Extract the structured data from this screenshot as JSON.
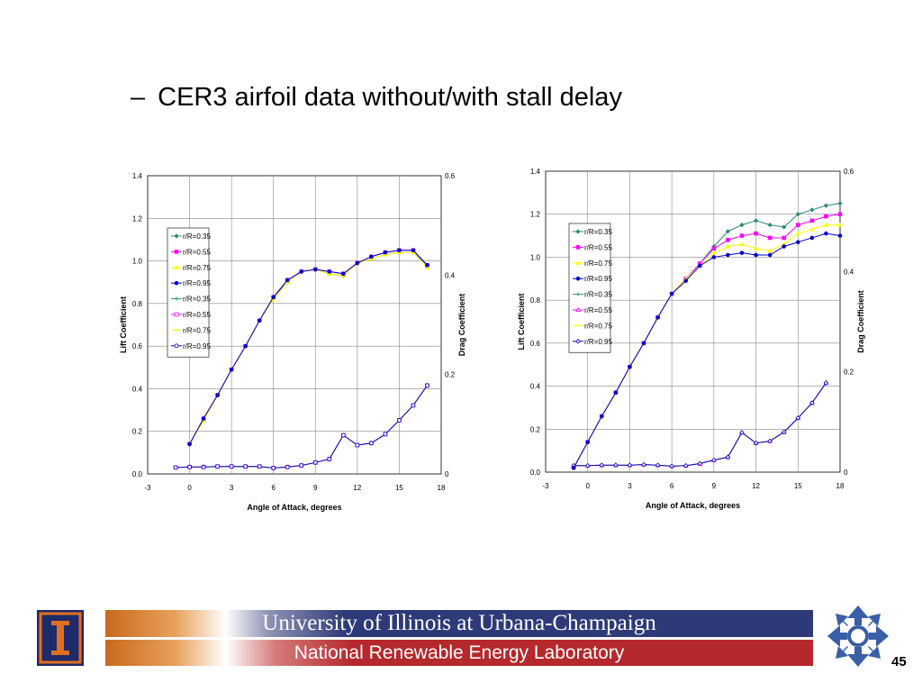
{
  "slide": {
    "title_dash": "–",
    "title": "CER3 airfoil data without/with stall delay",
    "page_number": "45"
  },
  "footer": {
    "line1": "University of Illinois at Urbana-Champaign",
    "line2": "National Renewable Energy Laboratory"
  },
  "colors": {
    "r035": "#2e8b74",
    "r055": "#ff00ff",
    "r075": "#ffff00",
    "r095": "#0000c8",
    "plot_bg": "#ffffff",
    "grid": "#888888",
    "illinois_blue": "#1f2a6b",
    "illinois_orange": "#e07020",
    "nrel_blue": "#3a5fa8"
  },
  "chart_data": [
    {
      "type": "line",
      "xlabel": "Angle of Attack, degrees",
      "ylabel": "Lift Coefficient",
      "y2label": "Drag Coefficient",
      "xlim": [
        -3,
        18
      ],
      "ylim": [
        0,
        1.4
      ],
      "y2lim": [
        0,
        0.6
      ],
      "xticks": [
        "-3",
        "0",
        "3",
        "6",
        "9",
        "12",
        "15",
        "18"
      ],
      "yticks": [
        "0.0",
        "0.2",
        "0.4",
        "0.6",
        "0.8",
        "1.0",
        "1.2",
        "1.4"
      ],
      "y2ticks": [
        "0",
        "0.2",
        "0.4",
        "0.6"
      ],
      "grid": true,
      "legend_position": "upper-left",
      "lift_series": [
        {
          "name": "r/R=0.35",
          "color": "#2e8b74",
          "marker": "diamond",
          "x": [
            0,
            1,
            2,
            3,
            4,
            5,
            6,
            7,
            8,
            9,
            10,
            11,
            12,
            13,
            14,
            15,
            16,
            17
          ],
          "y": [
            0.14,
            0.26,
            0.37,
            0.49,
            0.6,
            0.72,
            0.83,
            0.9,
            0.95,
            0.96,
            0.94,
            0.93,
            0.99,
            1.01,
            1.03,
            1.04,
            1.04,
            0.98
          ]
        },
        {
          "name": "r/R=0.55",
          "color": "#ff00ff",
          "marker": "square",
          "x": [
            0,
            1,
            2,
            3,
            4,
            5,
            6,
            7,
            8,
            9,
            10,
            11,
            12,
            13,
            14,
            15,
            16,
            17
          ],
          "y": [
            0.14,
            0.26,
            0.37,
            0.49,
            0.6,
            0.72,
            0.83,
            0.91,
            0.95,
            0.96,
            0.95,
            0.94,
            0.99,
            1.02,
            1.04,
            1.05,
            1.05,
            0.98
          ]
        },
        {
          "name": "r/R=0.75",
          "color": "#ffff00",
          "marker": "triangle",
          "x": [
            0,
            1,
            2,
            3,
            4,
            5,
            6,
            7,
            8,
            9,
            10,
            11,
            12,
            13,
            14,
            15,
            16,
            17
          ],
          "y": [
            0.14,
            0.25,
            0.37,
            0.49,
            0.6,
            0.72,
            0.82,
            0.9,
            0.95,
            0.96,
            0.94,
            0.93,
            0.99,
            1.01,
            1.03,
            1.04,
            1.04,
            0.97
          ]
        },
        {
          "name": "r/R=0.95",
          "color": "#0000c8",
          "marker": "circle",
          "x": [
            0,
            1,
            2,
            3,
            4,
            5,
            6,
            7,
            8,
            9,
            10,
            11,
            12,
            13,
            14,
            15,
            16,
            17
          ],
          "y": [
            0.14,
            0.26,
            0.37,
            0.49,
            0.6,
            0.72,
            0.83,
            0.91,
            0.95,
            0.96,
            0.95,
            0.94,
            0.99,
            1.02,
            1.04,
            1.05,
            1.05,
            0.98
          ]
        }
      ],
      "drag_series": [
        {
          "name": "r/R=0.35",
          "color": "#2e8b74",
          "marker": "plus",
          "x": [
            -1,
            0,
            1,
            2,
            3,
            4,
            5,
            6,
            7,
            8,
            9,
            10,
            11,
            12,
            13,
            14,
            15,
            16,
            17
          ],
          "y": [
            0.013,
            0.014,
            0.014,
            0.015,
            0.015,
            0.015,
            0.015,
            0.012,
            0.014,
            0.017,
            0.023,
            0.03,
            0.078,
            0.058,
            0.062,
            0.08,
            0.108,
            0.138,
            0.178
          ]
        },
        {
          "name": "r/R=0.55",
          "color": "#ff00ff",
          "marker": "open-square",
          "x": [
            -1,
            0,
            1,
            2,
            3,
            4,
            5,
            6,
            7,
            8,
            9,
            10,
            11,
            12,
            13,
            14,
            15,
            16,
            17
          ],
          "y": [
            0.013,
            0.014,
            0.014,
            0.015,
            0.015,
            0.015,
            0.015,
            0.012,
            0.014,
            0.017,
            0.023,
            0.03,
            0.078,
            0.058,
            0.062,
            0.08,
            0.108,
            0.138,
            0.178
          ]
        },
        {
          "name": "r/R=0.75",
          "color": "#ffff00",
          "marker": "dash",
          "x": [
            -1,
            0,
            1,
            2,
            3,
            4,
            5,
            6,
            7,
            8,
            9,
            10,
            11,
            12,
            13,
            14,
            15,
            16,
            17
          ],
          "y": [
            0.013,
            0.014,
            0.014,
            0.015,
            0.015,
            0.015,
            0.015,
            0.012,
            0.014,
            0.017,
            0.023,
            0.03,
            0.078,
            0.058,
            0.062,
            0.08,
            0.108,
            0.138,
            0.178
          ]
        },
        {
          "name": "r/R=0.95",
          "color": "#0000c8",
          "marker": "open-circle",
          "x": [
            -1,
            0,
            1,
            2,
            3,
            4,
            5,
            6,
            7,
            8,
            9,
            10,
            11,
            12,
            13,
            14,
            15,
            16,
            17
          ],
          "y": [
            0.013,
            0.014,
            0.014,
            0.015,
            0.015,
            0.015,
            0.015,
            0.012,
            0.014,
            0.017,
            0.023,
            0.03,
            0.078,
            0.058,
            0.062,
            0.08,
            0.108,
            0.138,
            0.178
          ]
        }
      ]
    },
    {
      "type": "line",
      "xlabel": "Angle of Attack, degrees",
      "ylabel": "Lift Coefficient",
      "y2label": "Drag Coefficient",
      "xlim": [
        -3,
        18
      ],
      "ylim": [
        0,
        1.4
      ],
      "y2lim": [
        0,
        0.6
      ],
      "xticks": [
        "-3",
        "0",
        "3",
        "6",
        "9",
        "12",
        "15",
        "18"
      ],
      "yticks": [
        "0.0",
        "0.2",
        "0.4",
        "0.6",
        "0.8",
        "1.0",
        "1.2",
        "1.4"
      ],
      "y2ticks": [
        "0",
        "0.2",
        "0.4",
        "0.6"
      ],
      "grid": true,
      "legend_position": "upper-left",
      "lift_series": [
        {
          "name": "r/R=0.35",
          "color": "#2e8b74",
          "marker": "diamond",
          "x": [
            -1,
            0,
            1,
            2,
            3,
            4,
            5,
            6,
            7,
            8,
            9,
            10,
            11,
            12,
            13,
            14,
            15,
            16,
            17,
            18
          ],
          "y": [
            0.02,
            0.14,
            0.26,
            0.37,
            0.49,
            0.6,
            0.72,
            0.83,
            0.9,
            0.97,
            1.05,
            1.12,
            1.15,
            1.17,
            1.15,
            1.14,
            1.2,
            1.22,
            1.24,
            1.25
          ]
        },
        {
          "name": "r/R=0.55",
          "color": "#ff00ff",
          "marker": "square",
          "x": [
            -1,
            0,
            1,
            2,
            3,
            4,
            5,
            6,
            7,
            8,
            9,
            10,
            11,
            12,
            13,
            14,
            15,
            16,
            17,
            18
          ],
          "y": [
            0.02,
            0.14,
            0.26,
            0.37,
            0.49,
            0.6,
            0.72,
            0.83,
            0.9,
            0.97,
            1.04,
            1.08,
            1.1,
            1.11,
            1.09,
            1.09,
            1.15,
            1.17,
            1.19,
            1.2
          ]
        },
        {
          "name": "r/R=0.75",
          "color": "#ffff00",
          "marker": "triangle",
          "x": [
            -1,
            0,
            1,
            2,
            3,
            4,
            5,
            6,
            7,
            8,
            9,
            10,
            11,
            12,
            13,
            14,
            15,
            16,
            17,
            18
          ],
          "y": [
            0.02,
            0.14,
            0.26,
            0.37,
            0.49,
            0.6,
            0.72,
            0.83,
            0.9,
            0.96,
            1.02,
            1.05,
            1.06,
            1.04,
            1.03,
            1.06,
            1.11,
            1.13,
            1.15,
            1.15
          ]
        },
        {
          "name": "r/R=0.95",
          "color": "#0000c8",
          "marker": "circle",
          "x": [
            -1,
            0,
            1,
            2,
            3,
            4,
            5,
            6,
            7,
            8,
            9,
            10,
            11,
            12,
            13,
            14,
            15,
            16,
            17,
            18
          ],
          "y": [
            0.02,
            0.14,
            0.26,
            0.37,
            0.49,
            0.6,
            0.72,
            0.83,
            0.89,
            0.96,
            1.0,
            1.01,
            1.02,
            1.01,
            1.01,
            1.05,
            1.07,
            1.09,
            1.11,
            1.1
          ]
        }
      ],
      "drag_series": [
        {
          "name": "r/R=0.35",
          "color": "#2e8b74",
          "marker": "plus",
          "x": [
            -1,
            0,
            1,
            2,
            3,
            4,
            5,
            6,
            7,
            8,
            9,
            10,
            11,
            12,
            13,
            14,
            15,
            16,
            17
          ],
          "y": [
            0.013,
            0.013,
            0.014,
            0.014,
            0.014,
            0.015,
            0.014,
            0.012,
            0.013,
            0.017,
            0.024,
            0.03,
            0.079,
            0.058,
            0.062,
            0.08,
            0.108,
            0.138,
            0.178
          ]
        },
        {
          "name": "r/R=0.55",
          "color": "#ff00ff",
          "marker": "open-triangle",
          "x": [
            -1,
            0,
            1,
            2,
            3,
            4,
            5,
            6,
            7,
            8,
            9,
            10,
            11,
            12,
            13,
            14,
            15,
            16,
            17
          ],
          "y": [
            0.013,
            0.013,
            0.014,
            0.014,
            0.014,
            0.015,
            0.014,
            0.012,
            0.013,
            0.017,
            0.024,
            0.03,
            0.079,
            0.058,
            0.062,
            0.08,
            0.108,
            0.138,
            0.178
          ]
        },
        {
          "name": "r/R=0.75",
          "color": "#ffff00",
          "marker": "dash",
          "x": [
            -1,
            0,
            1,
            2,
            3,
            4,
            5,
            6,
            7,
            8,
            9,
            10,
            11,
            12,
            13,
            14,
            15,
            16,
            17
          ],
          "y": [
            0.013,
            0.013,
            0.014,
            0.014,
            0.014,
            0.015,
            0.014,
            0.012,
            0.013,
            0.017,
            0.024,
            0.03,
            0.079,
            0.058,
            0.062,
            0.08,
            0.108,
            0.138,
            0.178
          ]
        },
        {
          "name": "r/R=0.95",
          "color": "#0000c8",
          "marker": "open-diamond",
          "x": [
            -1,
            0,
            1,
            2,
            3,
            4,
            5,
            6,
            7,
            8,
            9,
            10,
            11,
            12,
            13,
            14,
            15,
            16,
            17
          ],
          "y": [
            0.013,
            0.013,
            0.014,
            0.014,
            0.014,
            0.015,
            0.014,
            0.012,
            0.013,
            0.017,
            0.024,
            0.03,
            0.079,
            0.058,
            0.062,
            0.08,
            0.108,
            0.138,
            0.178
          ]
        }
      ]
    }
  ]
}
